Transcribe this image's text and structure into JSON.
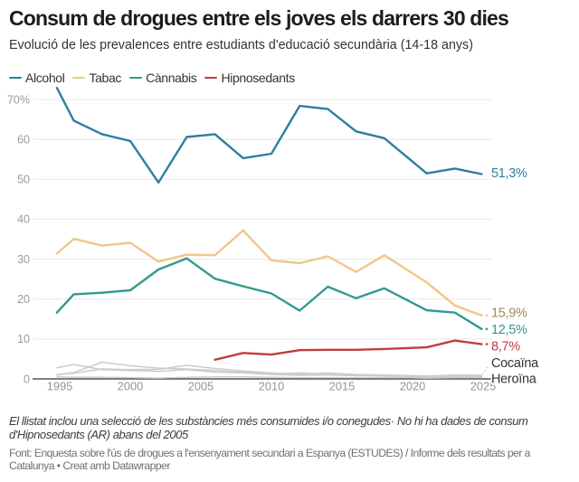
{
  "header": {
    "title": "Consum de drogues entre els joves els darrers 30 dies",
    "subtitle": "Evolució de les prevalences entre estudiants d'educació secundària (14-18 anys)"
  },
  "legend": {
    "items": [
      {
        "label": "Alcohol",
        "color": "#2e7f9e"
      },
      {
        "label": "Tabac",
        "color": "#efc886"
      },
      {
        "label": "Cànnabis",
        "color": "#319a8d"
      },
      {
        "label": "Hipnosedants",
        "color": "#c03d3c"
      }
    ]
  },
  "footer": {
    "note_lines": [
      "El llistat inclou una selecció de les substàncies més consumides i/o conegudes· No hi ha dades de consum",
      "d'Hipnosedants (AR) abans del 2005"
    ],
    "source_lines": [
      "Font: Enquesta sobre l'ús de drogues a l'ensenyament secundari a Espanya (ESTUDES) / Informe dels resultats per a",
      "Catalunya • Creat amb Datawrapper"
    ]
  },
  "chart_data": {
    "type": "line",
    "title": "Consum de drogues entre els joves els darrers 30 dies",
    "xlabel": "",
    "ylabel": "",
    "x": [
      1994.8,
      1996,
      1998,
      2000,
      2002,
      2004,
      2006,
      2008,
      2010,
      2012,
      2014,
      2016,
      2018,
      2021,
      2023,
      2024.9
    ],
    "x_ticks": [
      {
        "year": 1995,
        "label": "1995"
      },
      {
        "year": 2000,
        "label": "2000"
      },
      {
        "year": 2005,
        "label": "2005"
      },
      {
        "year": 2010,
        "label": "2010"
      },
      {
        "year": 2015,
        "label": "2015"
      },
      {
        "year": 2020,
        "label": "2020"
      },
      {
        "year": 2025,
        "label": "2025"
      }
    ],
    "y_ticks": [
      {
        "value": 0,
        "label": "0"
      },
      {
        "value": 10,
        "label": "10"
      },
      {
        "value": 20,
        "label": "20"
      },
      {
        "value": 30,
        "label": "30"
      },
      {
        "value": 40,
        "label": "40"
      },
      {
        "value": 50,
        "label": "50"
      },
      {
        "value": 60,
        "label": "60"
      },
      {
        "value": 70,
        "label": "70%"
      }
    ],
    "ylim": [
      0,
      74
    ],
    "xlim": [
      1993,
      2026
    ],
    "grid": true,
    "legend_position": "top",
    "series": [
      {
        "name": "Alcohol",
        "color": "#2e7f9e",
        "label_color": "#2e7f9e",
        "end_label": "51,3%",
        "end_label_y": 51.6,
        "emphasis": true,
        "values": [
          72.9,
          64.7,
          61.3,
          59.6,
          49.2,
          60.6,
          61.3,
          55.3,
          56.4,
          68.4,
          67.6,
          62.0,
          60.3,
          51.5,
          52.7,
          51.3
        ]
      },
      {
        "name": "Tabac",
        "color": "#efc886",
        "label_color": "#a1894e",
        "end_label": "15,9%",
        "end_label_y": 16.7,
        "leader_dot": true,
        "emphasis": true,
        "values": [
          31.4,
          35.1,
          33.4,
          34.1,
          29.4,
          31.1,
          31.0,
          37.2,
          29.7,
          29.0,
          30.7,
          26.8,
          31.0,
          24.2,
          18.4,
          15.9
        ]
      },
      {
        "name": "Cànnabis",
        "color": "#319a8d",
        "label_color": "#2f9a8c",
        "end_label": "12,5%",
        "end_label_y": 12.5,
        "leader_dot": true,
        "emphasis": true,
        "values": [
          16.6,
          21.2,
          21.6,
          22.2,
          27.4,
          30.2,
          25.1,
          23.2,
          21.4,
          17.1,
          23.1,
          20.2,
          22.7,
          17.2,
          16.6,
          12.5
        ]
      },
      {
        "name": "Hipnosedants",
        "color": "#c03d3c",
        "label_color": "#c03d3c",
        "end_label": "8,7%",
        "end_label_y": 8.3,
        "leader_dot": true,
        "emphasis": true,
        "values": [
          null,
          null,
          null,
          null,
          null,
          null,
          4.8,
          6.5,
          6.1,
          7.2,
          7.3,
          7.3,
          7.5,
          7.9,
          9.6,
          8.7
        ]
      },
      {
        "name": "",
        "color": "#cccccc",
        "emphasis": false,
        "values": [
          2.8,
          3.6,
          2.3,
          2.1,
          1.9,
          2.3,
          1.7,
          1.5,
          1.1,
          0.9,
          1.0,
          0.8,
          0.9,
          0.5,
          0.6,
          0.5
        ]
      },
      {
        "name": "",
        "color": "#cccccc",
        "emphasis": false,
        "values": [
          1.0,
          1.6,
          4.2,
          3.3,
          2.7,
          2.5,
          2.1,
          1.7,
          1.3,
          1.5,
          1.1,
          0.9,
          0.8,
          0.5,
          0.7,
          0.6
        ]
      },
      {
        "name": "Cocaïna",
        "color": "#cccccc",
        "label_color": "#333333",
        "end_label": "Cocaïna",
        "end_label_y": 4.1,
        "leader_dashed": true,
        "emphasis": false,
        "values": [
          1.1,
          1.4,
          2.5,
          2.3,
          2.4,
          3.4,
          2.6,
          2.0,
          1.5,
          1.2,
          1.5,
          1.1,
          1.0,
          0.7,
          1.0,
          0.9
        ]
      },
      {
        "name": "Heroïna",
        "color": "#cccccc",
        "label_color": "#333333",
        "end_label": "Heroïna",
        "end_label_y": 0.1,
        "emphasis": false,
        "values": [
          0.5,
          0.4,
          0.4,
          0.3,
          0.2,
          0.4,
          0.5,
          0.5,
          0.4,
          0.3,
          0.3,
          0.3,
          0.4,
          0.2,
          0.3,
          0.3
        ]
      }
    ]
  }
}
